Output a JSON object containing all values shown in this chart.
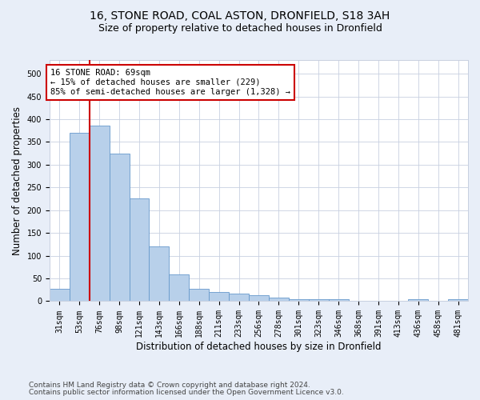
{
  "title1": "16, STONE ROAD, COAL ASTON, DRONFIELD, S18 3AH",
  "title2": "Size of property relative to detached houses in Dronfield",
  "xlabel": "Distribution of detached houses by size in Dronfield",
  "ylabel": "Number of detached properties",
  "categories": [
    "31sqm",
    "53sqm",
    "76sqm",
    "98sqm",
    "121sqm",
    "143sqm",
    "166sqm",
    "188sqm",
    "211sqm",
    "233sqm",
    "256sqm",
    "278sqm",
    "301sqm",
    "323sqm",
    "346sqm",
    "368sqm",
    "391sqm",
    "413sqm",
    "436sqm",
    "458sqm",
    "481sqm"
  ],
  "values": [
    27,
    370,
    385,
    325,
    225,
    120,
    58,
    27,
    20,
    17,
    13,
    7,
    5,
    5,
    4,
    0,
    0,
    0,
    4,
    0,
    4
  ],
  "bar_color": "#b8d0ea",
  "bar_edge_color": "#6699cc",
  "vline_color": "#cc0000",
  "vline_x": 1.5,
  "annotation_text": "16 STONE ROAD: 69sqm\n← 15% of detached houses are smaller (229)\n85% of semi-detached houses are larger (1,328) →",
  "annotation_box_color": "#ffffff",
  "annotation_box_edge_color": "#cc0000",
  "ylim": [
    0,
    530
  ],
  "yticks": [
    0,
    50,
    100,
    150,
    200,
    250,
    300,
    350,
    400,
    450,
    500
  ],
  "footer1": "Contains HM Land Registry data © Crown copyright and database right 2024.",
  "footer2": "Contains public sector information licensed under the Open Government Licence v3.0.",
  "background_color": "#e8eef8",
  "plot_background_color": "#ffffff",
  "grid_color": "#c8d0e0",
  "title1_fontsize": 10,
  "title2_fontsize": 9,
  "xlabel_fontsize": 8.5,
  "ylabel_fontsize": 8.5,
  "tick_fontsize": 7,
  "annotation_fontsize": 7.5,
  "footer_fontsize": 6.5
}
